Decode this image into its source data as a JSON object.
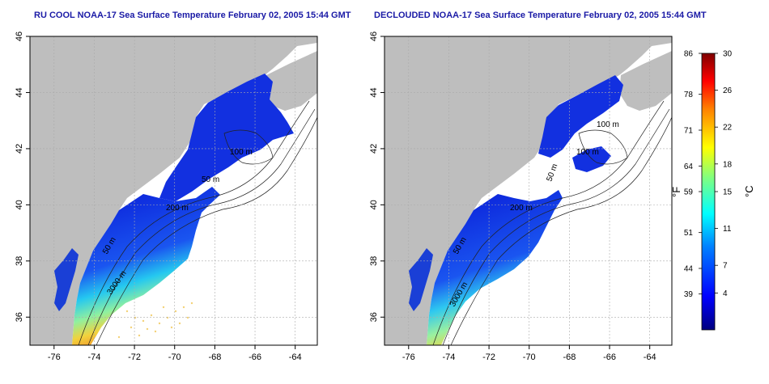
{
  "titles": {
    "left": "RU COOL NOAA-17 Sea Surface Temperature February 02, 2005 15:44 GMT",
    "right": "DECLOUDED NOAA-17 Sea Surface Temperature February 02, 2005 15:44 GMT"
  },
  "axes": {
    "lon_range": [
      -77.2,
      -62.9
    ],
    "lat_range": [
      35.0,
      46.0
    ],
    "lon_ticks": [
      -76,
      -74,
      -72,
      -70,
      -68,
      -66,
      -64
    ],
    "lat_ticks": [
      36,
      38,
      40,
      42,
      44,
      46
    ],
    "lon_tick_labels": [
      "-76",
      "-74",
      "-72",
      "-70",
      "-68",
      "-66",
      "-64"
    ],
    "lat_tick_labels": [
      "36",
      "38",
      "40",
      "42",
      "44",
      "46"
    ],
    "grid": "dotted"
  },
  "contour_labels": {
    "left": [
      "100 m",
      "50 m",
      "200 m",
      "50 m",
      "3000 m"
    ],
    "right": [
      "100 m",
      "100 m",
      "50 m",
      "200 m",
      "50 m",
      "3000 m"
    ]
  },
  "colorbar": {
    "range_c": [
      0,
      30
    ],
    "fahrenheit_labels": [
      "86",
      "78",
      "71",
      "64",
      "59",
      "51",
      "44",
      "39"
    ],
    "fahrenheit_values": [
      86,
      78,
      71,
      64,
      59,
      51,
      44,
      39
    ],
    "celsius_labels": [
      "30",
      "26",
      "22",
      "18",
      "15",
      "11",
      "7",
      "4"
    ],
    "celsius_values": [
      30,
      26,
      22,
      18,
      15,
      11,
      7,
      4
    ],
    "unit_f": "°F",
    "unit_c": "°C",
    "colors": [
      "#00007f",
      "#0000ff",
      "#0080ff",
      "#00ffff",
      "#80ff80",
      "#ffff00",
      "#ff8000",
      "#ff0000",
      "#7f0000"
    ]
  },
  "colors": {
    "land": "#bebebe",
    "water_cold": "#1a3fd6",
    "title": "#1a1aa6"
  }
}
